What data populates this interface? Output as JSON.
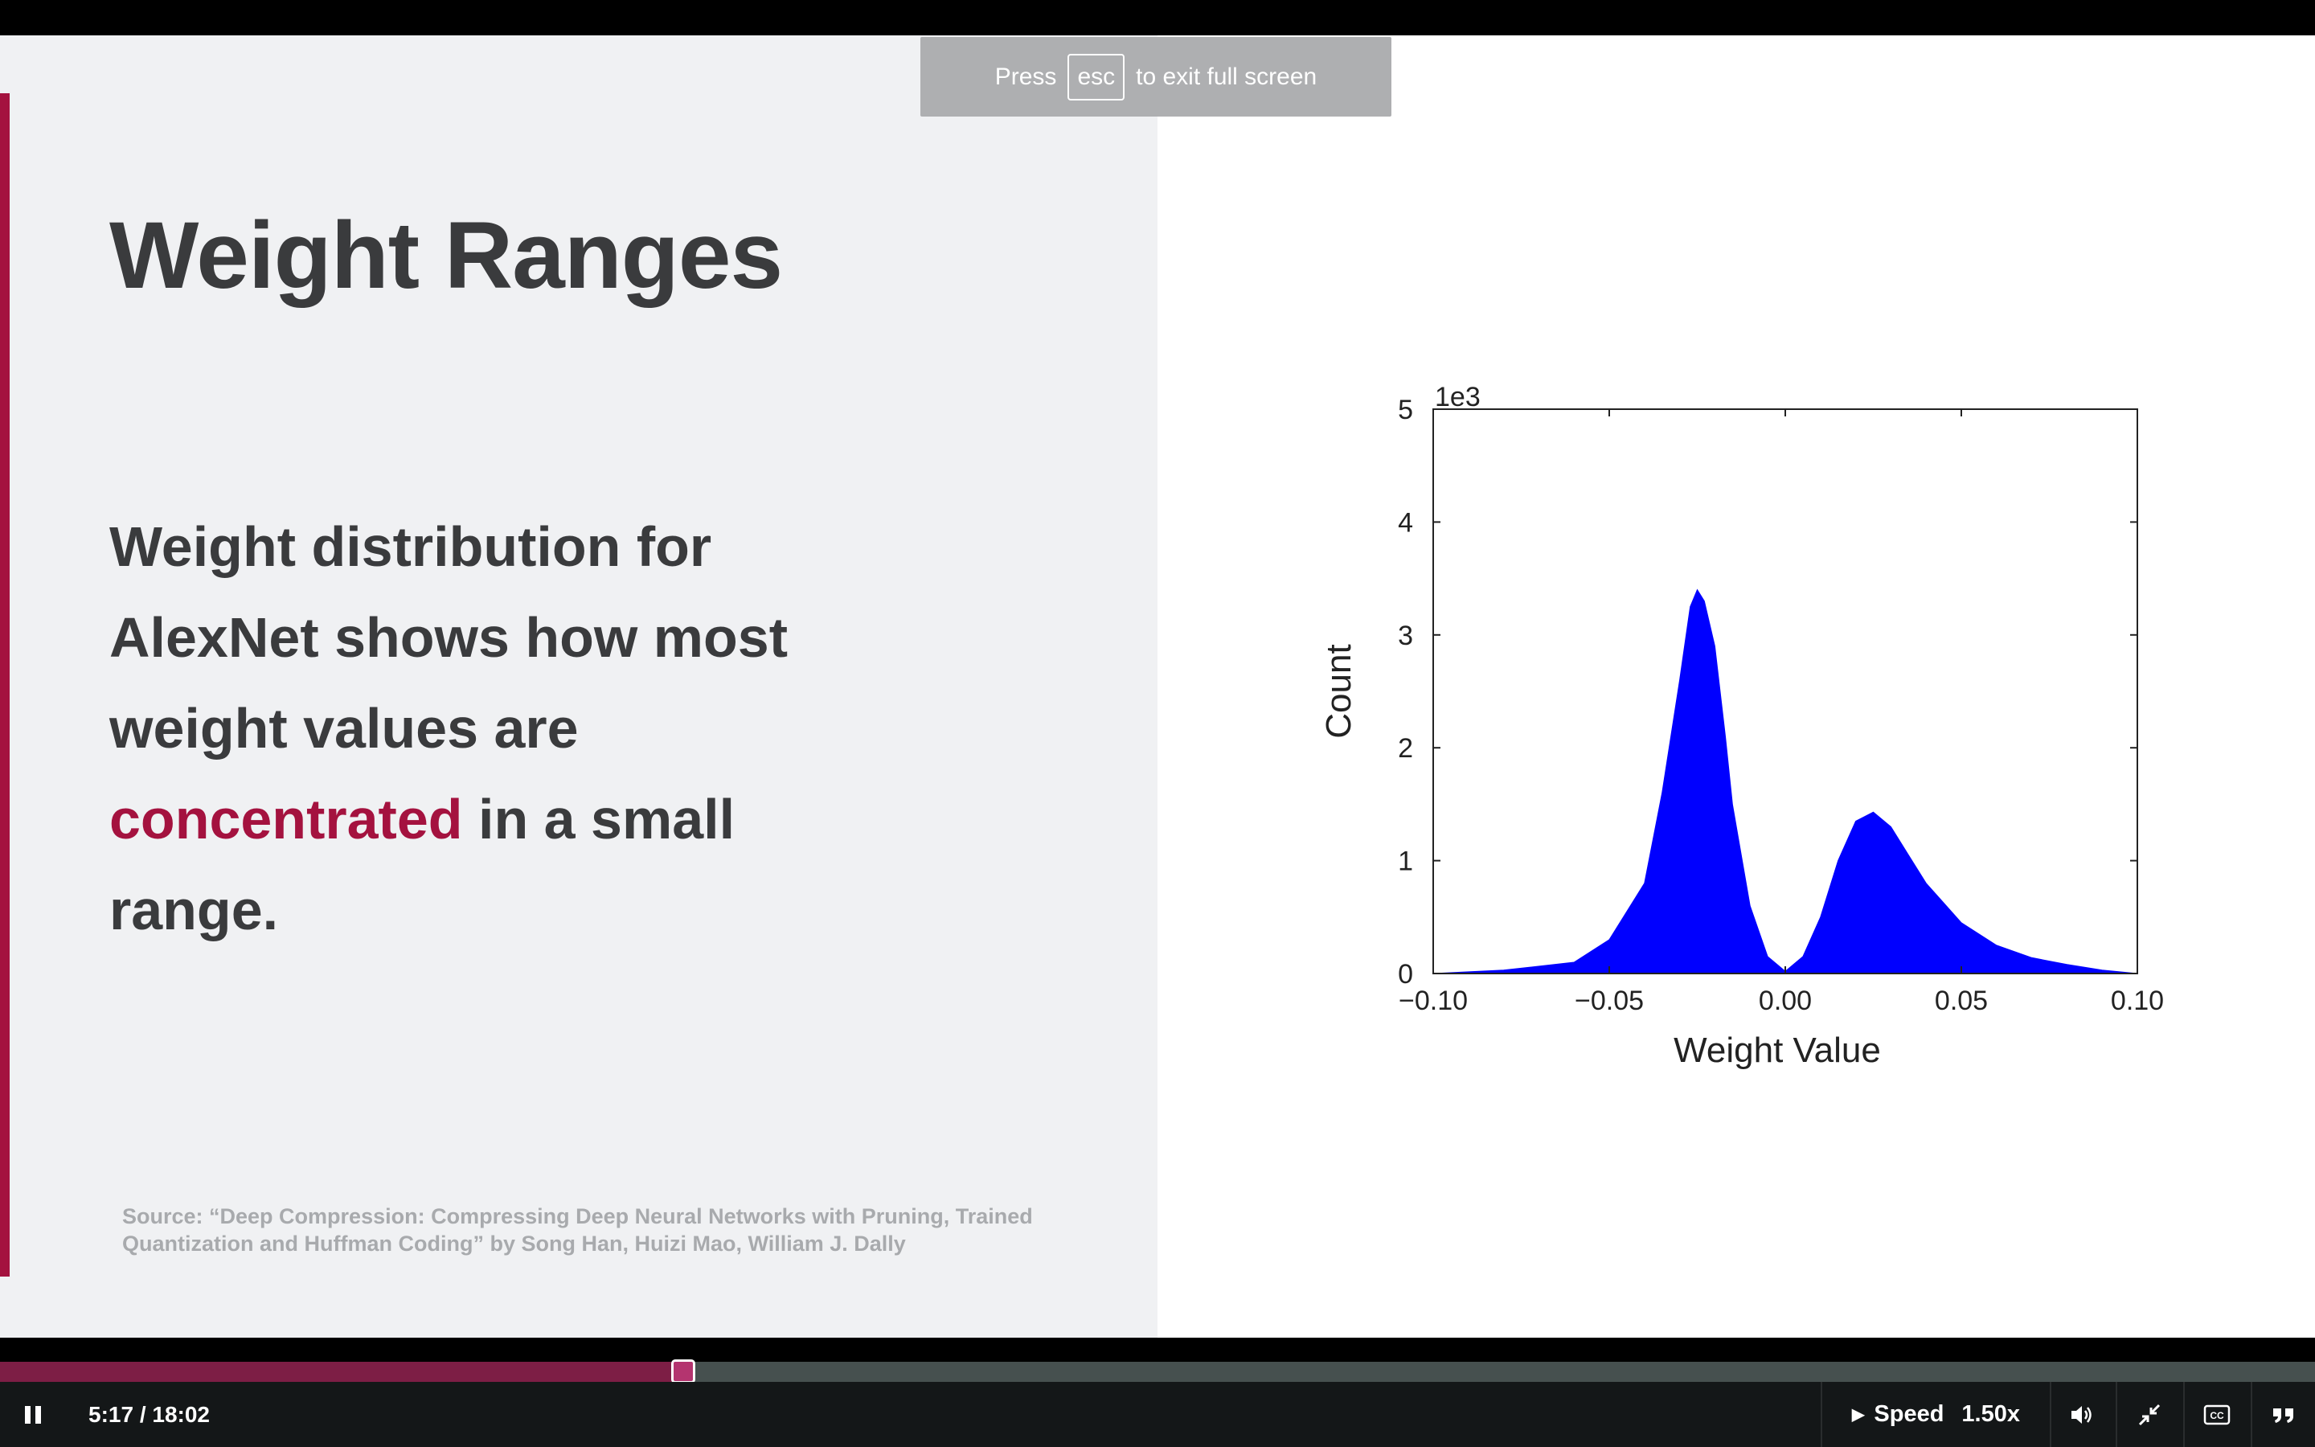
{
  "slide": {
    "title": "Weight Ranges",
    "body_line1": "Weight distribution for",
    "body_line2": "AlexNet shows how most",
    "body_line3": "weight values are",
    "body_highlight": "concentrated",
    "body_line4_rest": " in a small",
    "body_line5": "range.",
    "source_line1": "Source: “Deep Compression: Compressing Deep Neural Networks with Pruning, Trained",
    "source_line2": "Quantization and Huffman Coding” by Song Han, Huizi Mao, William J. Dally",
    "accent_color": "#a4123f"
  },
  "fullscreen_toast": {
    "press": "Press",
    "key": "esc",
    "rest": "to exit full screen"
  },
  "chart_data": {
    "type": "area",
    "xlabel": "Weight Value",
    "ylabel": "Count",
    "scale_label": "1e3",
    "xlim": [
      -0.1,
      0.1
    ],
    "ylim": [
      0,
      5
    ],
    "x_ticks": [
      "−0.10",
      "−0.05",
      "0.00",
      "0.05",
      "0.10"
    ],
    "y_ticks": [
      "0",
      "1",
      "2",
      "3",
      "4",
      "5"
    ],
    "fill_color": "#0000ff",
    "series": [
      {
        "x": [
          -0.1,
          -0.08,
          -0.06,
          -0.05,
          -0.04,
          -0.035,
          -0.03,
          -0.027,
          -0.025,
          -0.023,
          -0.02,
          -0.017,
          -0.015,
          -0.01,
          -0.005,
          0.0,
          0.005,
          0.01,
          0.015,
          0.02,
          0.025,
          0.03,
          0.035,
          0.04,
          0.05,
          0.06,
          0.07,
          0.08,
          0.09,
          0.1
        ],
        "y": [
          0.0,
          0.03,
          0.1,
          0.3,
          0.8,
          1.6,
          2.6,
          3.25,
          3.4,
          3.3,
          2.9,
          2.1,
          1.5,
          0.6,
          0.15,
          0.02,
          0.15,
          0.5,
          1.0,
          1.35,
          1.43,
          1.3,
          1.05,
          0.8,
          0.45,
          0.25,
          0.14,
          0.08,
          0.03,
          0.0
        ]
      }
    ]
  },
  "player": {
    "progress": 0.294,
    "current_time": "5:17",
    "duration": "18:02",
    "time_separator": " / ",
    "speed_label": "Speed",
    "speed_value": "1.50x",
    "pause_icon": "pause-icon",
    "volume_icon": "volume-icon",
    "exit_fullscreen_icon": "exit-fullscreen-icon",
    "cc_icon": "closed-captions-icon",
    "transcript_icon": "transcript-icon"
  }
}
